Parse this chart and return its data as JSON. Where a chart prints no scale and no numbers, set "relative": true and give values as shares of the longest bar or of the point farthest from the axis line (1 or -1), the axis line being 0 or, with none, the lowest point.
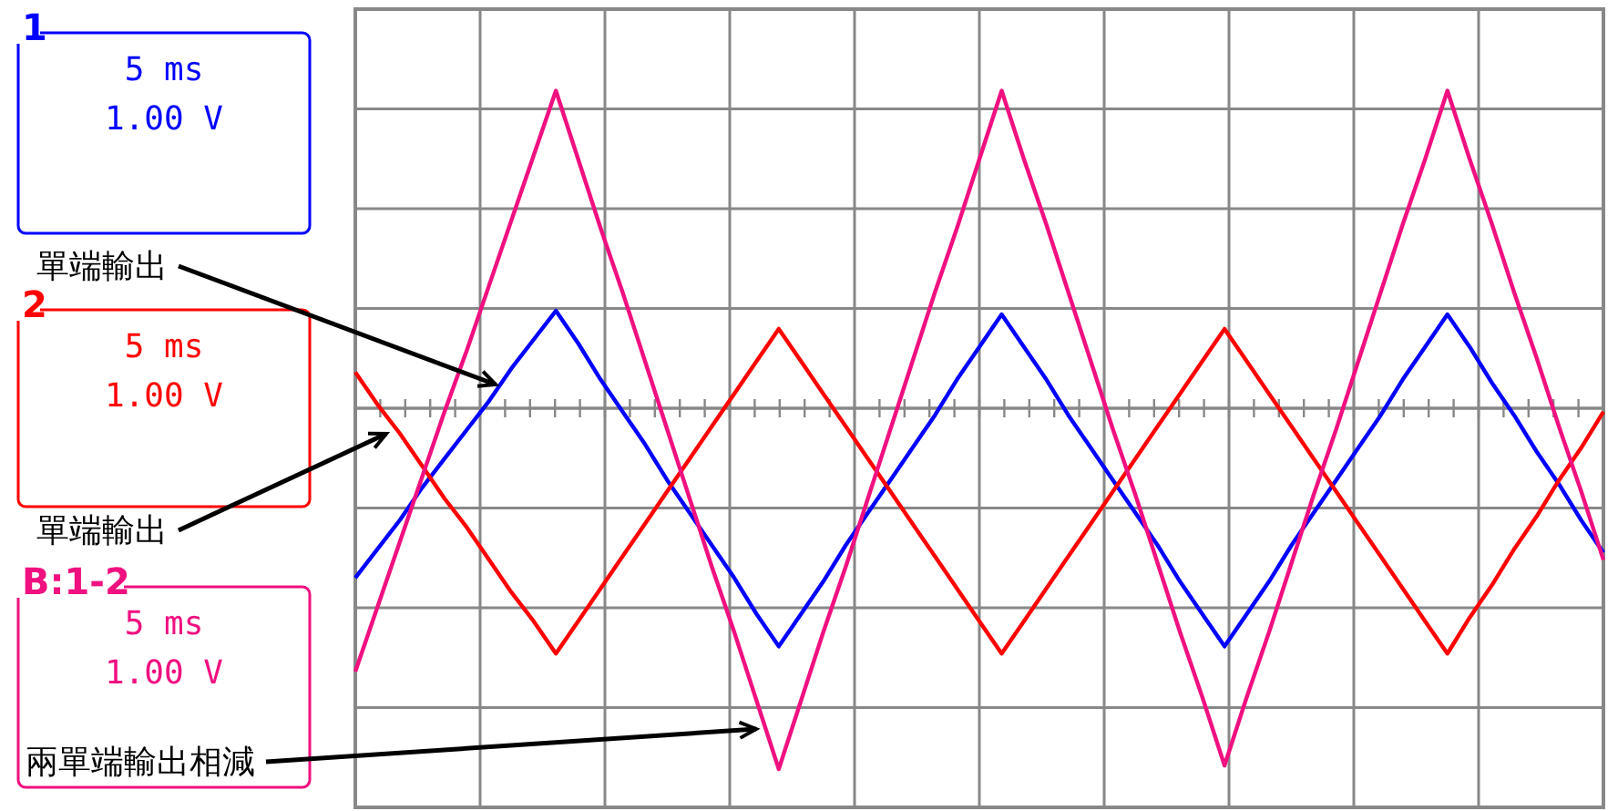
{
  "chart_data": {
    "type": "line",
    "relative": true,
    "grid": true,
    "marker": "none",
    "line_style": "solid",
    "categories": [
      null,
      null,
      null,
      null,
      null,
      null,
      null,
      null,
      null,
      null,
      null,
      null,
      null,
      null,
      null,
      null,
      null,
      null,
      null,
      null,
      null,
      null,
      null,
      null,
      null,
      null,
      null,
      null,
      null,
      null,
      null,
      null,
      null,
      null,
      null,
      null,
      null,
      null,
      null,
      null,
      null,
      null,
      null,
      null,
      null,
      null,
      null,
      null,
      null,
      null,
      null,
      null,
      null,
      null,
      null,
      null,
      null
    ],
    "series": [
      {
        "name": "1",
        "color": "#0000ff",
        "values": [
          -0.47,
          -0.39,
          -0.31,
          -0.22,
          -0.14,
          -0.06,
          0.02,
          0.11,
          0.19,
          0.27,
          0.18,
          0.08,
          -0.01,
          -0.1,
          -0.2,
          -0.29,
          -0.38,
          -0.47,
          -0.57,
          -0.66,
          -0.57,
          -0.48,
          -0.38,
          -0.29,
          -0.2,
          -0.11,
          -0.02,
          0.08,
          0.17,
          0.26,
          0.17,
          0.08,
          -0.02,
          -0.11,
          -0.2,
          -0.29,
          -0.38,
          -0.48,
          -0.57,
          -0.66,
          -0.57,
          -0.48,
          -0.38,
          -0.29,
          -0.2,
          -0.11,
          -0.02,
          0.08,
          0.17,
          0.26,
          0.17,
          0.07,
          -0.02,
          -0.12,
          -0.21,
          -0.31,
          -0.4
        ]
      },
      {
        "name": "2",
        "color": "#ff0000",
        "values": [
          0.1,
          0.01,
          -0.07,
          -0.16,
          -0.25,
          -0.33,
          -0.42,
          -0.51,
          -0.59,
          -0.68,
          -0.59,
          -0.5,
          -0.41,
          -0.32,
          -0.23,
          -0.14,
          -0.05,
          0.04,
          0.13,
          0.22,
          0.13,
          0.04,
          -0.05,
          -0.14,
          -0.23,
          -0.32,
          -0.41,
          -0.5,
          -0.59,
          -0.68,
          -0.59,
          -0.5,
          -0.41,
          -0.32,
          -0.23,
          -0.14,
          -0.05,
          0.04,
          0.13,
          0.22,
          0.13,
          0.04,
          -0.05,
          -0.14,
          -0.23,
          -0.32,
          -0.41,
          -0.5,
          -0.59,
          -0.68,
          -0.58,
          -0.49,
          -0.39,
          -0.3,
          -0.2,
          -0.11,
          -0.01
        ]
      },
      {
        "name": "B:1-2",
        "color": "#f01080",
        "values": [
          -0.73,
          -0.55,
          -0.37,
          -0.19,
          -0.01,
          0.16,
          0.34,
          0.52,
          0.7,
          0.88,
          0.69,
          0.5,
          0.32,
          0.13,
          -0.06,
          -0.25,
          -0.44,
          -0.62,
          -0.81,
          -1,
          -0.81,
          -0.62,
          -0.44,
          -0.25,
          -0.06,
          0.13,
          0.32,
          0.5,
          0.69,
          0.88,
          0.69,
          0.51,
          0.32,
          0.13,
          -0.06,
          -0.24,
          -0.43,
          -0.62,
          -0.8,
          -0.99,
          -0.8,
          -0.62,
          -0.43,
          -0.24,
          -0.06,
          0.13,
          0.32,
          0.51,
          0.69,
          0.88,
          0.69,
          0.51,
          0.32,
          0.14,
          -0.05,
          -0.23,
          -0.42
        ]
      }
    ],
    "annotations": [
      "5 ms",
      "1.00 V",
      "5 ms",
      "1.00 V",
      "5 ms",
      "1.00 V",
      "單端輸出",
      "單端輸出",
      "兩單端輸出相減"
    ]
  }
}
